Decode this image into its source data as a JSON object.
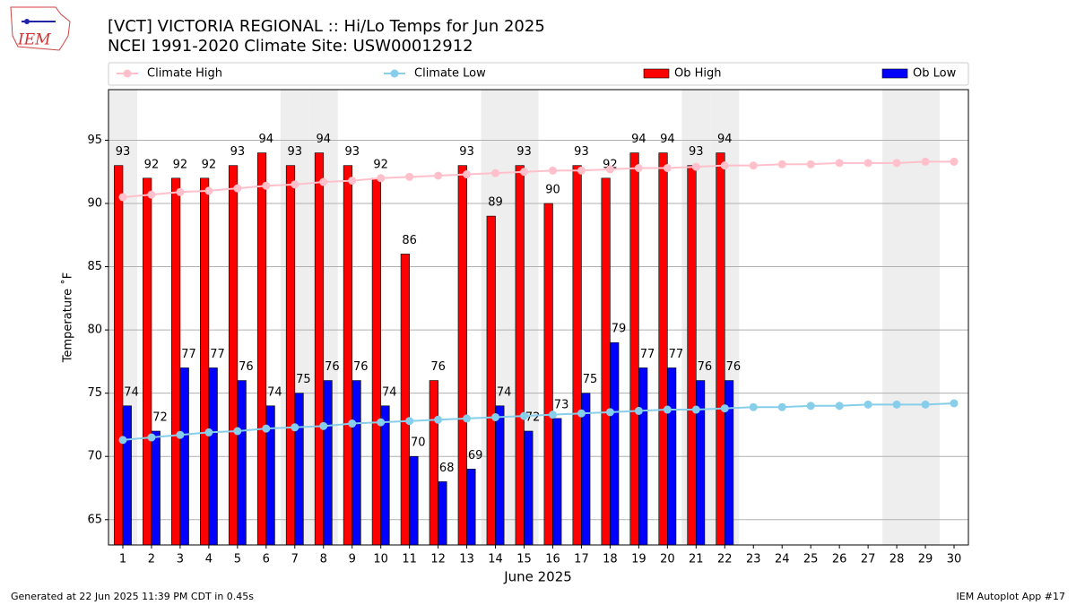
{
  "logo_text": "IEM",
  "footer": {
    "left": "Generated at 22 Jun 2025 11:39 PM CDT in 0.45s",
    "right": "IEM Autoplot App #17"
  },
  "chart_data": {
    "type": "bar",
    "title": "[VCT] VICTORIA REGIONAL :: Hi/Lo Temps for Jun 2025",
    "subtitle": "NCEI 1991-2020 Climate Site: USW00012912",
    "x_label": "June 2025",
    "y_label": "Temperature ˚F",
    "x": [
      1,
      2,
      3,
      4,
      5,
      6,
      7,
      8,
      9,
      10,
      11,
      12,
      13,
      14,
      15,
      16,
      17,
      18,
      19,
      20,
      21,
      22,
      23,
      24,
      25,
      26,
      27,
      28,
      29,
      30
    ],
    "xlim": [
      0.5,
      30.5
    ],
    "xticks": [
      1,
      2,
      3,
      4,
      5,
      6,
      7,
      8,
      9,
      10,
      11,
      12,
      13,
      14,
      15,
      16,
      17,
      18,
      19,
      20,
      21,
      22,
      23,
      24,
      25,
      26,
      27,
      28,
      29,
      30
    ],
    "ylim": [
      63,
      99
    ],
    "yticks": [
      65,
      70,
      75,
      80,
      85,
      90,
      95
    ],
    "grid": true,
    "legend": "above",
    "shaded_days": [
      1,
      7,
      8,
      14,
      15,
      21,
      22,
      28,
      29
    ],
    "shade_color": "#eeeeee",
    "series": [
      {
        "name": "Climate High",
        "type": "line",
        "color": "#ffc0cb",
        "values": [
          90.5,
          90.7,
          90.9,
          91.0,
          91.2,
          91.4,
          91.5,
          91.7,
          91.8,
          92.0,
          92.1,
          92.2,
          92.3,
          92.4,
          92.5,
          92.6,
          92.6,
          92.7,
          92.8,
          92.8,
          92.9,
          93.0,
          93.0,
          93.1,
          93.1,
          93.2,
          93.2,
          93.2,
          93.3,
          93.3
        ]
      },
      {
        "name": "Climate Low",
        "type": "line",
        "color": "#87ceeb",
        "values": [
          71.3,
          71.5,
          71.7,
          71.9,
          72.0,
          72.2,
          72.3,
          72.4,
          72.6,
          72.7,
          72.8,
          72.9,
          73.0,
          73.1,
          73.2,
          73.3,
          73.4,
          73.5,
          73.6,
          73.7,
          73.7,
          73.8,
          73.9,
          73.9,
          74.0,
          74.0,
          74.1,
          74.1,
          74.1,
          74.2
        ]
      },
      {
        "name": "Ob High",
        "type": "bar",
        "color": "#ff0000",
        "values": [
          93,
          92,
          92,
          92,
          93,
          94,
          93,
          94,
          93,
          92,
          86,
          76,
          93,
          89,
          93,
          90,
          93,
          92,
          94,
          94,
          93,
          94,
          null,
          null,
          null,
          null,
          null,
          null,
          null,
          null
        ]
      },
      {
        "name": "Ob Low",
        "type": "bar",
        "color": "#0000ff",
        "values": [
          74,
          72,
          77,
          77,
          76,
          74,
          75,
          76,
          76,
          74,
          70,
          68,
          69,
          74,
          72,
          73,
          75,
          79,
          77,
          77,
          76,
          76,
          null,
          null,
          null,
          null,
          null,
          null,
          null,
          null
        ]
      }
    ]
  }
}
